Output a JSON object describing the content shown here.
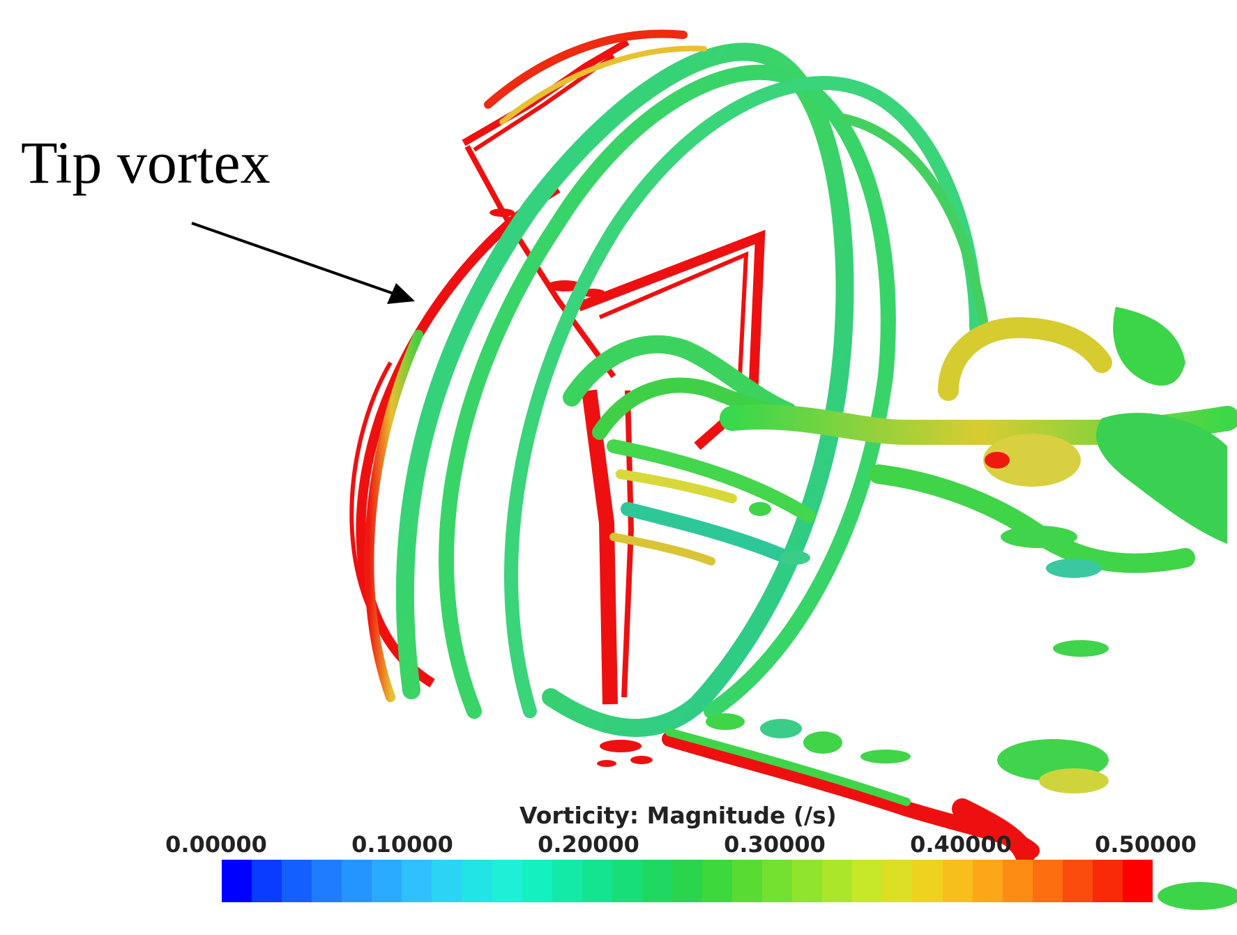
{
  "annotation": {
    "label": "Tip vortex"
  },
  "legend": {
    "title": "Vorticity: Magnitude (/s)",
    "ticks": [
      "0.00000",
      "0.10000",
      "0.20000",
      "0.30000",
      "0.40000",
      "0.50000"
    ],
    "colors": [
      "#0000ff",
      "#0a3cff",
      "#1460ff",
      "#1e7cff",
      "#2494ff",
      "#2aaaff",
      "#2ec0ff",
      "#2cd4f4",
      "#22e4e4",
      "#1ef0d8",
      "#14f0c0",
      "#14eaa8",
      "#14e490",
      "#18de78",
      "#1ed862",
      "#2ad44c",
      "#3cd83c",
      "#58dc34",
      "#74e030",
      "#90e42c",
      "#ace62a",
      "#c6e828",
      "#dce024",
      "#eed220",
      "#f8be1c",
      "#fca618",
      "#fc8c14",
      "#fc6e10",
      "#fa4c0c",
      "#f82a08",
      "#ff0000"
    ]
  },
  "colors": {
    "vortex_green": "#38d45a",
    "vortex_teal": "#2cc898",
    "high_vorticity_red": "#ee1010",
    "mid_yellow": "#d8d83a"
  }
}
